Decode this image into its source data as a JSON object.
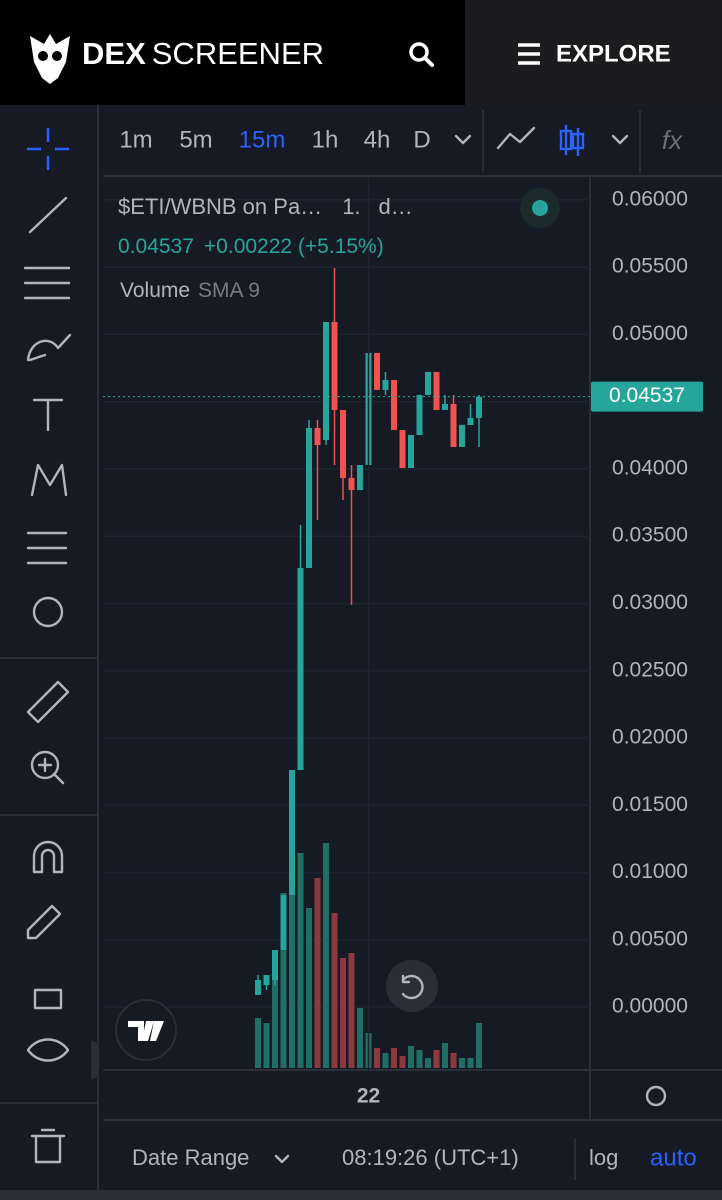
{
  "header": {
    "brand_bold": "DEX",
    "brand": "SCREENER",
    "explore": "EXPLORE"
  },
  "toolbar": {
    "intervals": [
      "1m",
      "5m",
      "15m",
      "1h",
      "4h",
      "D"
    ],
    "active_interval": 2,
    "indicators": "fx"
  },
  "legend": {
    "title": "$ETI/WBNB on Pa…",
    "interval": "1.",
    "source": "d…",
    "price": "0.04537",
    "change": "+0.00222 (+5.15%)",
    "volume": "Volume",
    "sma": "SMA 9"
  },
  "footer": {
    "date_range": "Date Range",
    "time": "08:19:26 (UTC+1)",
    "log": "log",
    "auto": "auto"
  },
  "chart_data": {
    "type": "candlestick",
    "categories": [
      null,
      null,
      null,
      null,
      null,
      null,
      null,
      null,
      null,
      null,
      null,
      null,
      null,
      "22",
      null,
      null,
      null,
      null,
      null,
      null,
      null,
      null,
      null,
      null,
      null,
      null,
      null
    ],
    "open": [
      0.0009,
      0.00164,
      0.00201,
      0.00424,
      0.00833,
      0.01762,
      0.03264,
      0.04304,
      0.04215,
      0.05092,
      0.04438,
      0.03933,
      0.03843,
      0.04029,
      0.04862,
      0.04587,
      0.04661,
      0.04289,
      0.04007,
      0.04252,
      0.0455,
      0.04721,
      0.04438,
      0.04483,
      0.04163,
      0.04327,
      0.04379
    ],
    "high": [
      0.00238,
      0.00238,
      0.00424,
      0.00833,
      0.01762,
      0.03583,
      0.04364,
      0.04364,
      0.05092,
      0.05494,
      0.04438,
      0.04029,
      0.04029,
      0.04862,
      0.04862,
      0.04721,
      0.04661,
      0.04289,
      0.04252,
      0.0455,
      0.04721,
      0.04721,
      0.0455,
      0.0455,
      0.04327,
      0.04483,
      0.0455
    ],
    "low": [
      0.0009,
      0.00127,
      0.00164,
      0.00424,
      0.00833,
      0.01762,
      0.03264,
      0.0362,
      0.04178,
      0.04029,
      0.03769,
      0.02989,
      0.03843,
      0.04029,
      0.04587,
      0.0455,
      0.04289,
      0.04007,
      0.04007,
      0.04252,
      0.0455,
      0.04438,
      0.04438,
      0.04163,
      0.04163,
      0.04327,
      0.04163
    ],
    "close": [
      0.00201,
      0.00238,
      0.00424,
      0.00833,
      0.01762,
      0.03264,
      0.04304,
      0.04178,
      0.05092,
      0.04438,
      0.03933,
      0.03843,
      0.04029,
      0.04862,
      0.04587,
      0.04661,
      0.04289,
      0.04007,
      0.04252,
      0.0455,
      0.04721,
      0.04438,
      0.04483,
      0.04163,
      0.04327,
      0.04379,
      0.04537
    ],
    "volume": [
      50,
      45,
      90,
      175,
      200,
      215,
      160,
      190,
      225,
      155,
      110,
      115,
      60,
      35,
      20,
      15,
      20,
      12,
      22,
      18,
      10,
      18,
      25,
      15,
      10,
      10,
      45
    ],
    "up_color": "#26a69a",
    "down_color": "#ef5350",
    "volume_up_color": "#1f6f66",
    "volume_down_color": "#8c3a3f",
    "ylim": [
      -0.00468,
      0.0617
    ],
    "yticks": [
      {
        "value": 0.06,
        "label": "0.06000"
      },
      {
        "value": 0.055,
        "label": "0.05500"
      },
      {
        "value": 0.05,
        "label": "0.05000"
      },
      {
        "value": 0.045,
        "label": "0.04500"
      },
      {
        "value": 0.04,
        "label": "0.04000"
      },
      {
        "value": 0.035,
        "label": "0.03500"
      },
      {
        "value": 0.03,
        "label": "0.03000"
      },
      {
        "value": 0.025,
        "label": "0.02500"
      },
      {
        "value": 0.02,
        "label": "0.02000"
      },
      {
        "value": 0.015,
        "label": "0.01500"
      },
      {
        "value": 0.01,
        "label": "0.01000"
      },
      {
        "value": 0.005,
        "label": "0.00500"
      },
      {
        "value": 0,
        "label": "0.00000"
      }
    ],
    "last_price": {
      "value": 0.04537,
      "label": "0.04537"
    },
    "grid": true
  }
}
